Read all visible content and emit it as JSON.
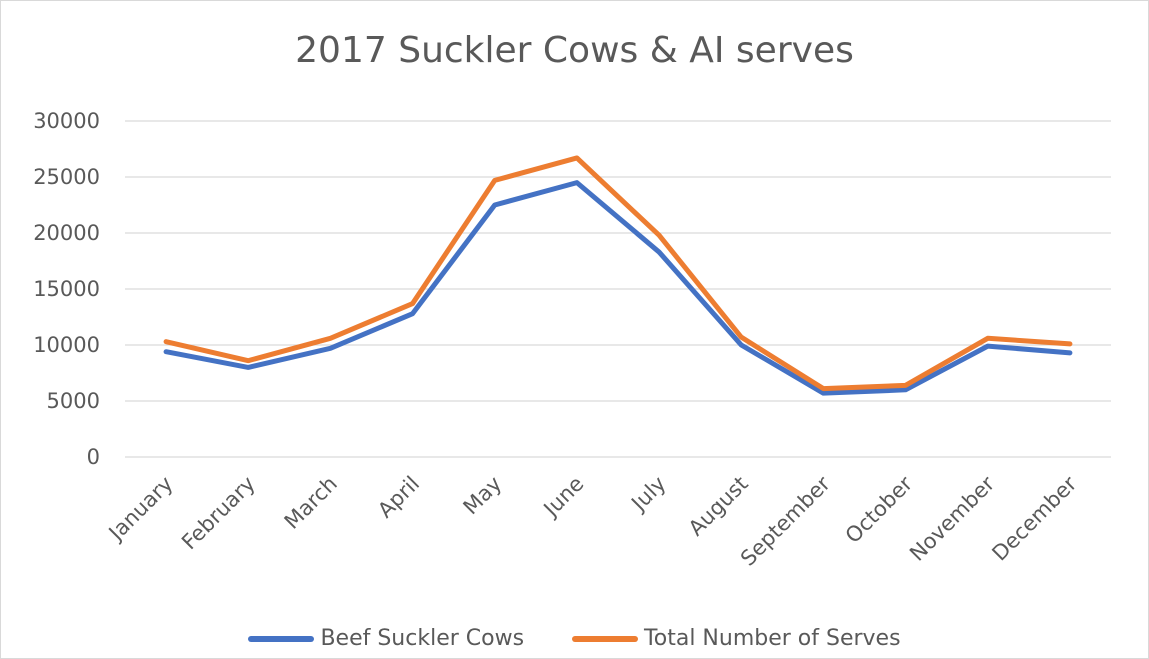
{
  "chart_data": {
    "type": "line",
    "title": "2017 Suckler Cows & AI serves",
    "categories": [
      "January",
      "February",
      "March",
      "April",
      "May",
      "June",
      "July",
      "August",
      "September",
      "October",
      "November",
      "December"
    ],
    "series": [
      {
        "name": "Beef Suckler Cows",
        "color": "#4472C4",
        "values": [
          9400,
          8000,
          9700,
          12800,
          22500,
          24500,
          18300,
          10000,
          5700,
          6000,
          9900,
          9300
        ]
      },
      {
        "name": "Total Number of Serves",
        "color": "#ED7D31",
        "values": [
          10300,
          8600,
          10600,
          13700,
          24700,
          26700,
          19800,
          10700,
          6100,
          6400,
          10600,
          10100
        ]
      }
    ],
    "ylim": [
      0,
      30000
    ],
    "yticks": [
      0,
      5000,
      10000,
      15000,
      20000,
      25000,
      30000
    ],
    "grid": true,
    "legend_position": "bottom"
  }
}
